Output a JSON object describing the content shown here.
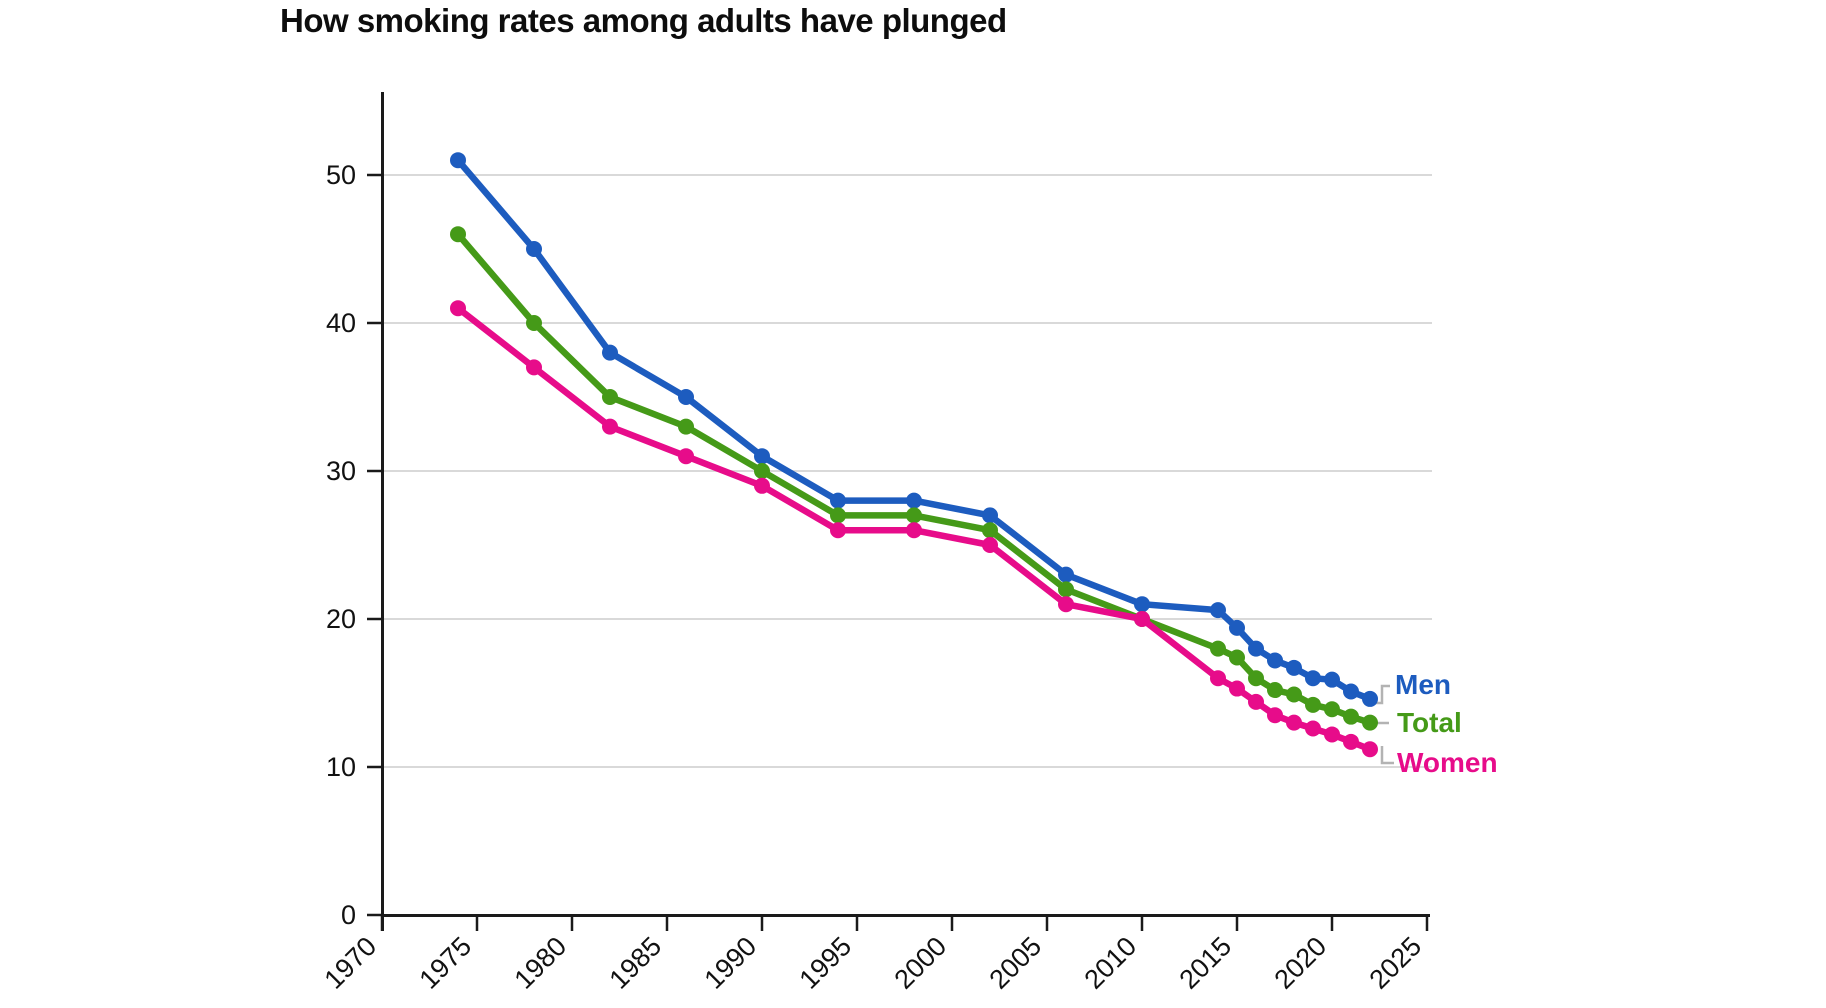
{
  "title": "How smoking rates among adults have plunged",
  "chart_data": {
    "type": "line",
    "title": "How smoking rates among adults have plunged",
    "xlabel": "",
    "ylabel": "",
    "xlim": [
      1970,
      2025
    ],
    "ylim": [
      0,
      55.5
    ],
    "x_ticks": [
      1970,
      1975,
      1980,
      1985,
      1990,
      1995,
      2000,
      2005,
      2010,
      2015,
      2020,
      2025
    ],
    "y_ticks": [
      0,
      10,
      20,
      30,
      40,
      50
    ],
    "grid": "horizontal-only",
    "grid_color": "#d9d9d9",
    "axis_color": "#1a1a1a",
    "leader_color": "#b3b3b3",
    "legend_position": "end-of-line-labels",
    "series": [
      {
        "name": "Men",
        "color": "#1d5cbf",
        "points": [
          [
            1974,
            51
          ],
          [
            1978,
            45
          ],
          [
            1982,
            38
          ],
          [
            1986,
            35
          ],
          [
            1990,
            31
          ],
          [
            1994,
            28
          ],
          [
            1998,
            28
          ],
          [
            2002,
            27
          ],
          [
            2006,
            23
          ],
          [
            2010,
            21
          ],
          [
            2014,
            20.6
          ],
          [
            2015,
            19.4
          ],
          [
            2016,
            18
          ],
          [
            2017,
            17.2
          ],
          [
            2018,
            16.7
          ],
          [
            2019,
            16
          ],
          [
            2020,
            15.9
          ],
          [
            2021,
            15.1
          ],
          [
            2022,
            14.6
          ]
        ]
      },
      {
        "name": "Total",
        "color": "#459a18",
        "points": [
          [
            1974,
            46
          ],
          [
            1978,
            40
          ],
          [
            1982,
            35
          ],
          [
            1986,
            33
          ],
          [
            1990,
            30
          ],
          [
            1994,
            27
          ],
          [
            1998,
            27
          ],
          [
            2002,
            26
          ],
          [
            2006,
            22
          ],
          [
            2010,
            20
          ],
          [
            2014,
            18
          ],
          [
            2015,
            17.4
          ],
          [
            2016,
            16
          ],
          [
            2017,
            15.2
          ],
          [
            2018,
            14.9
          ],
          [
            2019,
            14.2
          ],
          [
            2020,
            13.9
          ],
          [
            2021,
            13.4
          ],
          [
            2022,
            13
          ]
        ]
      },
      {
        "name": "Women",
        "color": "#e70c8a",
        "points": [
          [
            1974,
            41
          ],
          [
            1978,
            37
          ],
          [
            1982,
            33
          ],
          [
            1986,
            31
          ],
          [
            1990,
            29
          ],
          [
            1994,
            26
          ],
          [
            1998,
            26
          ],
          [
            2002,
            25
          ],
          [
            2006,
            21
          ],
          [
            2010,
            20
          ],
          [
            2014,
            16
          ],
          [
            2015,
            15.3
          ],
          [
            2016,
            14.4
          ],
          [
            2017,
            13.5
          ],
          [
            2018,
            13
          ],
          [
            2019,
            12.6
          ],
          [
            2020,
            12.2
          ],
          [
            2021,
            11.7
          ],
          [
            2022,
            11.2
          ]
        ]
      }
    ]
  }
}
